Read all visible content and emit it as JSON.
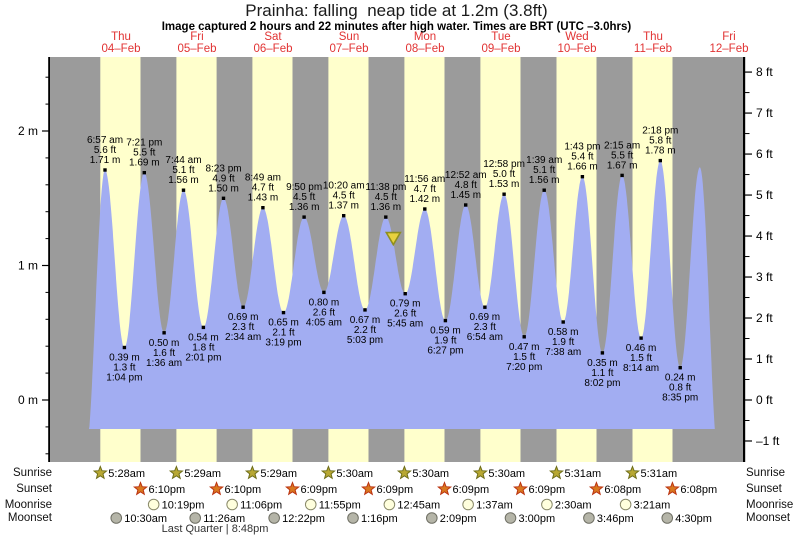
{
  "title": "Prainha: falling  neap tide at 1.2m (3.8ft)",
  "subtitle": "Image captured 2 hours and 22 minutes after high water. Times are BRT (UTC –3.0hrs)",
  "rows": {
    "sunrise_label": "Sunrise",
    "sunset_label": "Sunset",
    "moonrise_label": "Moonrise",
    "moonset_label": "Moonset"
  },
  "colors": {
    "band_day": "#ffffcc",
    "band_night": "#9b9b9b",
    "curve": "#a2adf2",
    "day_label": "#e13333",
    "axis": "#000000",
    "text": "#000000",
    "marker_fill": "#e8d23e",
    "marker_stroke": "#8f8f1f",
    "sunrise_fill": "#b8a833",
    "sunrise_stroke": "#6e6e1a",
    "sunset_fill": "#d9781f",
    "sunset_stroke": "#bb3311",
    "moonrise_fill": "#ffffdd",
    "moonrise_stroke": "#8a8a6a",
    "moonset_fill": "#b5b5a8",
    "moonset_stroke": "#6f6f64"
  },
  "chart_data": {
    "type": "area",
    "title": "Prainha: falling  neap tide at 1.2m (3.8ft)",
    "ylabel_left_unit": "m",
    "ylabel_right_unit": "ft",
    "ticks_m": [
      0,
      1,
      2
    ],
    "ticks_ft": [
      -1,
      0,
      1,
      2,
      3,
      4,
      5,
      6,
      7,
      8
    ],
    "ylim_m": [
      -0.46,
      2.55
    ],
    "days": [
      {
        "label": "Thu",
        "date": "04–Feb"
      },
      {
        "label": "Fri",
        "date": "05–Feb"
      },
      {
        "label": "Sat",
        "date": "06–Feb"
      },
      {
        "label": "Sun",
        "date": "07–Feb"
      },
      {
        "label": "Mon",
        "date": "08–Feb"
      },
      {
        "label": "Tue",
        "date": "09–Feb"
      },
      {
        "label": "Wed",
        "date": "10–Feb"
      },
      {
        "label": "Thu",
        "date": "11–Feb"
      },
      {
        "label": "Fri",
        "date": "12–Feb"
      }
    ],
    "sun": {
      "sunrise": [
        "5:28am",
        "5:29am",
        "5:29am",
        "5:30am",
        "5:30am",
        "5:30am",
        "5:31am",
        "5:31am"
      ],
      "sunset": [
        "6:10pm",
        "6:10pm",
        "6:09pm",
        "6:09pm",
        "6:09pm",
        "6:09pm",
        "6:08pm",
        "6:08pm"
      ]
    },
    "moon": {
      "moonrise": [
        {
          "day": 0,
          "time": "10:19pm"
        },
        {
          "day": 1,
          "time": "11:06pm"
        },
        {
          "day": 2,
          "time": "11:55pm"
        },
        {
          "day": 4,
          "time": "12:45am"
        },
        {
          "day": 5,
          "time": "1:37am"
        },
        {
          "day": 6,
          "time": "2:30am"
        },
        {
          "day": 7,
          "time": "3:21am"
        }
      ],
      "moonset": [
        {
          "day": 0,
          "time": "10:30am"
        },
        {
          "day": 1,
          "time": "11:26am"
        },
        {
          "day": 2,
          "time": "12:22pm"
        },
        {
          "day": 3,
          "time": "1:16pm"
        },
        {
          "day": 4,
          "time": "2:09pm"
        },
        {
          "day": 5,
          "time": "3:00pm"
        },
        {
          "day": 6,
          "time": "3:46pm"
        },
        {
          "day": 7,
          "time": "4:30pm"
        }
      ]
    },
    "moon_phase": {
      "label": "Last Quarter | 8:48pm"
    },
    "marker": {
      "day": 4,
      "time": "2:00 am",
      "m": 1.2
    },
    "tides": [
      {
        "day": 0,
        "time": "12:48 am",
        "m": -0.4,
        "ft": -1.3,
        "type": "low",
        "labeled": false
      },
      {
        "day": 0,
        "time": "6:57 am",
        "m": 1.71,
        "ft": 5.6,
        "type": "high",
        "labeled": true
      },
      {
        "day": 0,
        "time": "1:04 pm",
        "m": 0.39,
        "ft": 1.3,
        "type": "low",
        "labeled": true
      },
      {
        "day": 0,
        "time": "7:21 pm",
        "m": 1.69,
        "ft": 5.5,
        "type": "high",
        "labeled": true
      },
      {
        "day": 1,
        "time": "1:36 am",
        "m": 0.5,
        "ft": 1.6,
        "type": "low",
        "labeled": true
      },
      {
        "day": 1,
        "time": "7:44 am",
        "m": 1.56,
        "ft": 5.1,
        "type": "high",
        "labeled": true
      },
      {
        "day": 1,
        "time": "2:01 pm",
        "m": 0.54,
        "ft": 1.8,
        "type": "low",
        "labeled": true
      },
      {
        "day": 1,
        "time": "8:23 pm",
        "m": 1.5,
        "ft": 4.9,
        "type": "high",
        "labeled": true
      },
      {
        "day": 2,
        "time": "2:34 am",
        "m": 0.69,
        "ft": 2.3,
        "type": "low",
        "labeled": true
      },
      {
        "day": 2,
        "time": "8:49 am",
        "m": 1.43,
        "ft": 4.7,
        "type": "high",
        "labeled": true
      },
      {
        "day": 2,
        "time": "3:19 pm",
        "m": 0.65,
        "ft": 2.1,
        "type": "low",
        "labeled": true
      },
      {
        "day": 2,
        "time": "9:50 pm",
        "m": 1.36,
        "ft": 4.5,
        "type": "high",
        "labeled": true
      },
      {
        "day": 3,
        "time": "4:05 am",
        "m": 0.8,
        "ft": 2.6,
        "type": "low",
        "labeled": true
      },
      {
        "day": 3,
        "time": "10:20 am",
        "m": 1.37,
        "ft": 4.5,
        "type": "high",
        "labeled": true
      },
      {
        "day": 3,
        "time": "5:03 pm",
        "m": 0.67,
        "ft": 2.2,
        "type": "low",
        "labeled": true
      },
      {
        "day": 3,
        "time": "11:38 pm",
        "m": 1.36,
        "ft": 4.5,
        "type": "high",
        "labeled": true
      },
      {
        "day": 4,
        "time": "5:45 am",
        "m": 0.79,
        "ft": 2.6,
        "type": "low",
        "labeled": true
      },
      {
        "day": 4,
        "time": "11:56 am",
        "m": 1.42,
        "ft": 4.7,
        "type": "high",
        "labeled": true
      },
      {
        "day": 4,
        "time": "6:27 pm",
        "m": 0.59,
        "ft": 1.9,
        "type": "low",
        "labeled": true
      },
      {
        "day": 5,
        "time": "12:52 am",
        "m": 1.45,
        "ft": 4.8,
        "type": "high",
        "labeled": true
      },
      {
        "day": 5,
        "time": "6:54 am",
        "m": 0.69,
        "ft": 2.3,
        "type": "low",
        "labeled": true
      },
      {
        "day": 5,
        "time": "12:58 pm",
        "m": 1.53,
        "ft": 5.0,
        "type": "high",
        "labeled": true
      },
      {
        "day": 5,
        "time": "7:20 pm",
        "m": 0.47,
        "ft": 1.5,
        "type": "low",
        "labeled": true
      },
      {
        "day": 6,
        "time": "1:39 am",
        "m": 1.56,
        "ft": 5.1,
        "type": "high",
        "labeled": true
      },
      {
        "day": 6,
        "time": "7:38 am",
        "m": 0.58,
        "ft": 1.9,
        "type": "low",
        "labeled": true
      },
      {
        "day": 6,
        "time": "1:43 pm",
        "m": 1.66,
        "ft": 5.4,
        "type": "high",
        "labeled": true
      },
      {
        "day": 6,
        "time": "8:02 pm",
        "m": 0.35,
        "ft": 1.1,
        "type": "low",
        "labeled": true
      },
      {
        "day": 7,
        "time": "2:15 am",
        "m": 1.67,
        "ft": 5.5,
        "type": "high",
        "labeled": true
      },
      {
        "day": 7,
        "time": "8:14 am",
        "m": 0.46,
        "ft": 1.5,
        "type": "low",
        "labeled": true
      },
      {
        "day": 7,
        "time": "2:18 pm",
        "m": 1.78,
        "ft": 5.8,
        "type": "high",
        "labeled": true
      },
      {
        "day": 7,
        "time": "8:35 pm",
        "m": 0.24,
        "ft": 0.8,
        "type": "low",
        "labeled": true
      },
      {
        "day": 8,
        "time": "2:48 am",
        "m": 1.73,
        "ft": 5.7,
        "type": "high",
        "labeled": false
      },
      {
        "day": 8,
        "time": "8:54 am",
        "m": -0.5,
        "ft": -1.6,
        "type": "low",
        "labeled": false
      }
    ]
  }
}
